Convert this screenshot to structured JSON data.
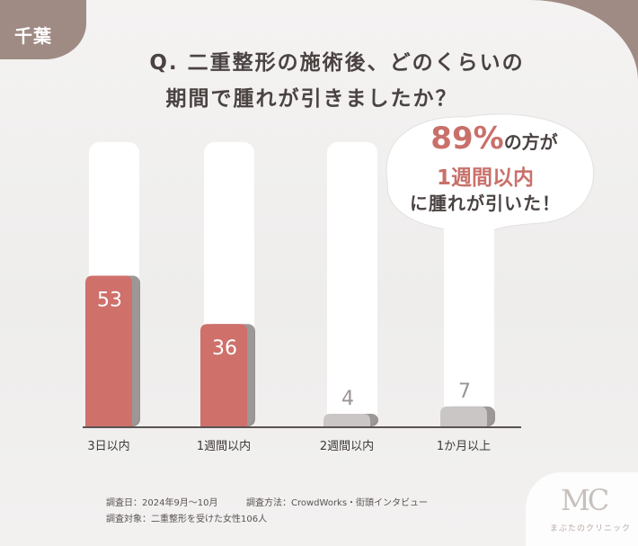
{
  "region_label": "千葉",
  "title": {
    "line1": "Q. 二重整形の施術後、どのくらいの",
    "line2": "期間で腫れが引きましたか？"
  },
  "callout": {
    "percent": "89%",
    "line1_rest": "の方が",
    "line2": "1週間以内",
    "line3": "に腫れが引いた！"
  },
  "chart_data": {
    "type": "bar",
    "categories": [
      "3日以内",
      "1週間以内",
      "2週間以内",
      "1か月以上"
    ],
    "values": [
      53,
      36,
      4,
      7
    ],
    "ylim": [
      0,
      100
    ],
    "colors": {
      "highlight": "#cf706b",
      "muted": "#c9c6c5",
      "track": "#ffffff",
      "value_on_highlight": "#ffffff",
      "value_on_muted": "#9a9593"
    },
    "highlighted": [
      true,
      true,
      false,
      false
    ],
    "grid": false
  },
  "notes": {
    "survey_date": "調査日：2024年9月〜10月",
    "survey_method": "調査方法：CrowdWorks・街頭インタビュー",
    "survey_target": "調査対象：二重整形を受けた女性106人"
  },
  "logo": {
    "mark": "MC",
    "name": "まぶたのクリニック"
  }
}
